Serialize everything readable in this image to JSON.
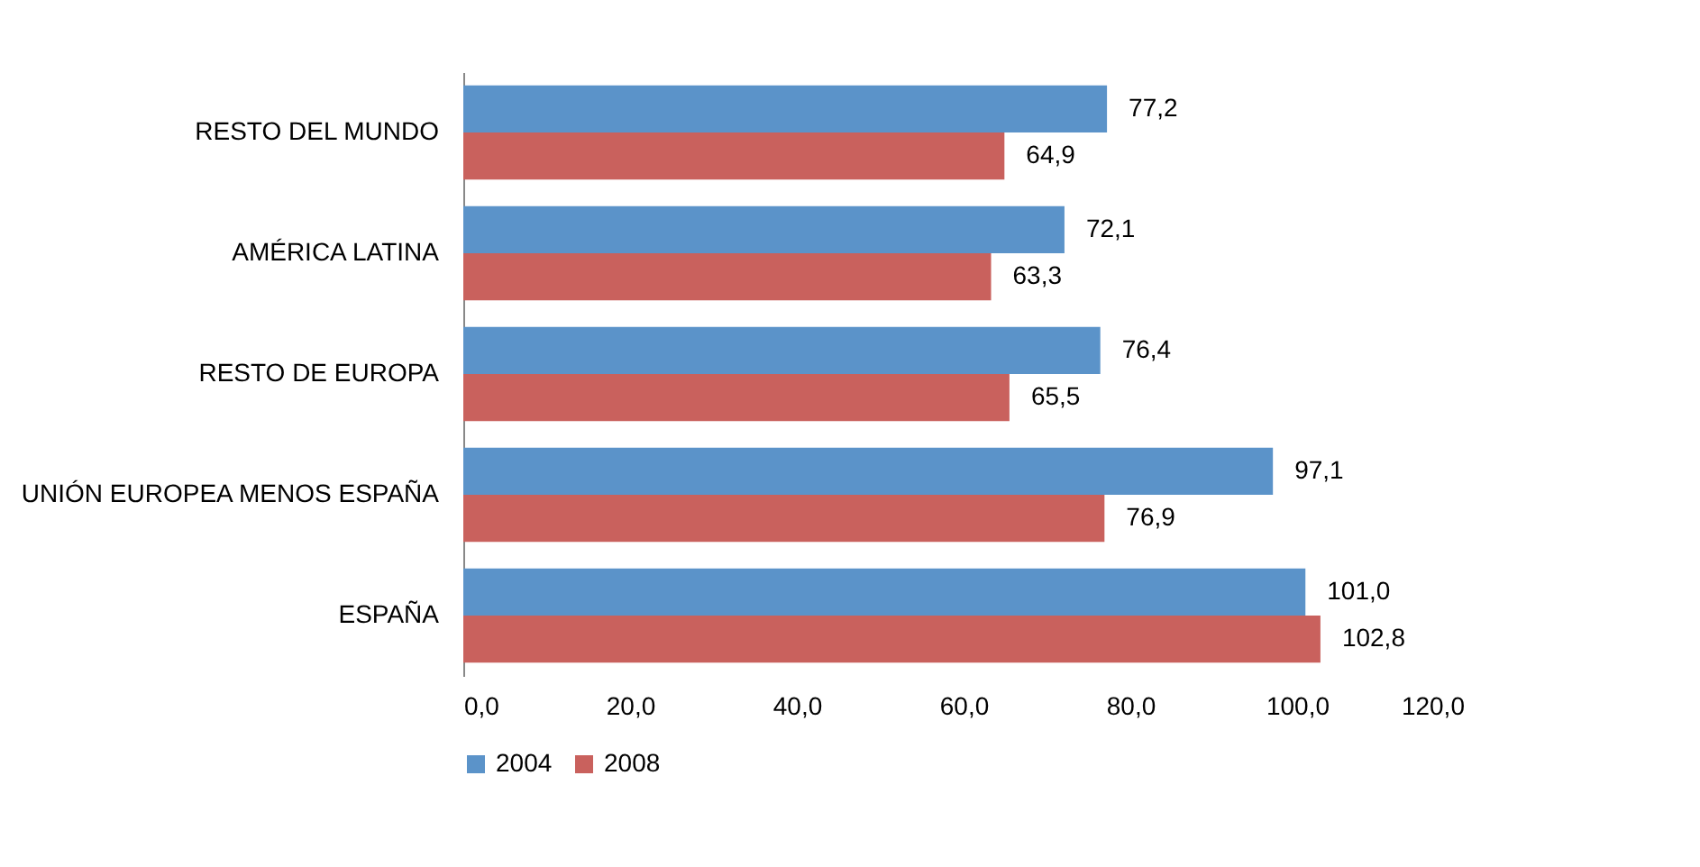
{
  "chart_data": {
    "type": "bar",
    "orientation": "horizontal",
    "categories": [
      "RESTO DEL MUNDO",
      "AMÉRICA LATINA",
      "RESTO DE EUROPA",
      "UNIÓN EUROPEA MENOS ESPAÑA",
      "ESPAÑA"
    ],
    "series": [
      {
        "name": "2004",
        "color": "#5b93c9",
        "values": [
          77.2,
          72.1,
          76.4,
          97.1,
          101.0
        ],
        "value_labels": [
          "77,2",
          "72,1",
          "76,4",
          "97,1",
          "101,0"
        ]
      },
      {
        "name": "2008",
        "color": "#c9615d",
        "values": [
          64.9,
          63.3,
          65.5,
          76.9,
          102.8
        ],
        "value_labels": [
          "64,9",
          "63,3",
          "65,5",
          "76,9",
          "102,8"
        ]
      }
    ],
    "xlim": [
      0,
      120
    ],
    "xticks": [
      {
        "value": 0,
        "label": "0,0"
      },
      {
        "value": 20,
        "label": "20,0"
      },
      {
        "value": 40,
        "label": "40,0"
      },
      {
        "value": 60,
        "label": "60,0"
      },
      {
        "value": 80,
        "label": "80,0"
      },
      {
        "value": 100,
        "label": "100,0"
      },
      {
        "value": 120,
        "label": "120,0"
      }
    ],
    "grid": false,
    "legend": "bottom"
  }
}
